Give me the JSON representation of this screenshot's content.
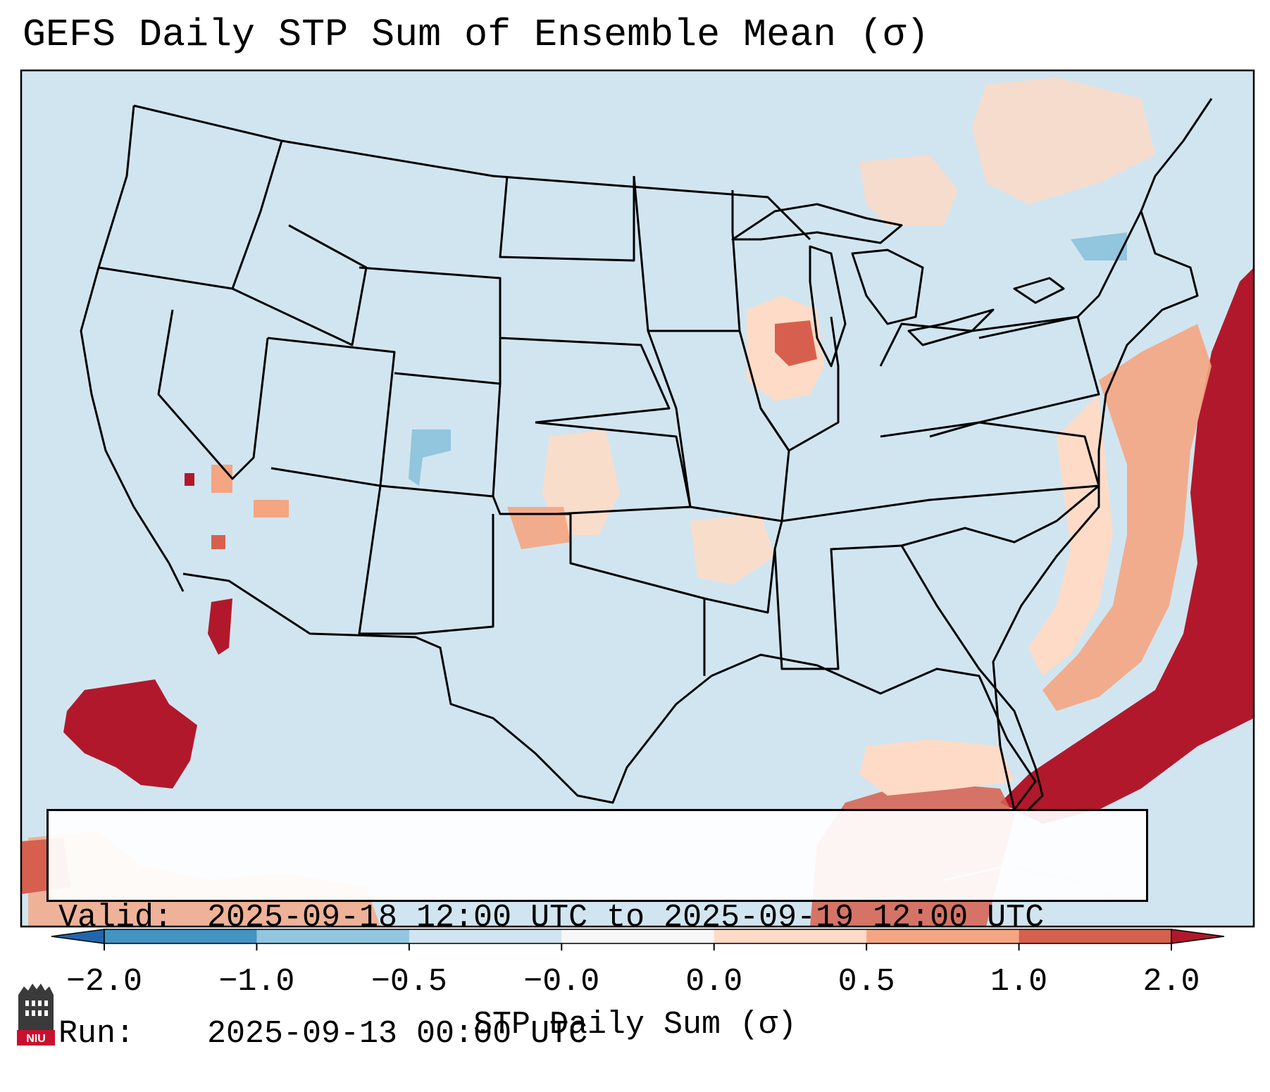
{
  "title": "GEFS Daily STP Sum of Ensemble Mean (σ)",
  "info": {
    "valid_label": "Valid:",
    "valid_value": "2025-09-18 12:00 UTC to 2025-09-19 12:00 UTC",
    "run_label": "Run:",
    "run_value": "2025-09-13 00:00 UTC"
  },
  "colorbar": {
    "label": "STP Daily Sum (σ)",
    "ticks": [
      "−2.0",
      "−1.0",
      "−0.5",
      "−0.0",
      "0.0",
      "0.5",
      "1.0",
      "2.0"
    ],
    "colors": [
      "#4393c3",
      "#92c5de",
      "#d1e5f0",
      "#f7f7f7",
      "#fddbc7",
      "#f4a582",
      "#d6604d"
    ],
    "under_color": "#2166ac",
    "over_color": "#b2182b"
  },
  "map": {
    "background_color": "#d1e5f0",
    "region": "Contiguous United States",
    "projection": "Lambert Conformal"
  },
  "logo": {
    "text": "NIU"
  }
}
